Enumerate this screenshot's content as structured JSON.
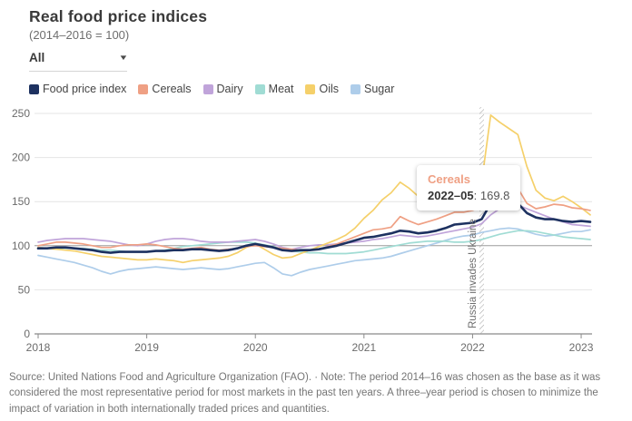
{
  "header": {
    "title": "Real food price indices",
    "subtitle": "(2014–2016 = 100)"
  },
  "controls": {
    "dropdown_value": "All",
    "dropdown_icon": "chevron-down"
  },
  "tooltip": {
    "series": "Cereals",
    "date": "2022–05",
    "separator": ": ",
    "value": "169.8"
  },
  "footer": {
    "source": "Source: United Nations Food and Agriculture Organization (FAO). · Note: The period 2014–16 was chosen as the base as it was considered the most representative period for most markets in the past ten years. A three–year period is chosen to minimize the impact of variation in both internationally traded prices and quantities."
  },
  "colors": {
    "food_price_index": "#1d3160",
    "cereals": "#efa084",
    "dairy": "#c0a4da",
    "meat": "#a0dcd4",
    "oils": "#f5d06a",
    "sugar": "#aecdea",
    "gridline": "#e4e4e4",
    "reference_line_100": "#9c9c9c",
    "axis": "#8a8a8a",
    "axis_label": "#6b6b6b",
    "annotation_text": "#6e6e6e"
  },
  "chart_data": {
    "type": "line",
    "title": "Real food price indices",
    "subtitle": "(2014–2016 = 100)",
    "xlabel": "",
    "ylabel": "",
    "ylim": [
      0,
      250
    ],
    "yticks": [
      0,
      50,
      100,
      150,
      200,
      250
    ],
    "xticks": [
      "2018",
      "2019",
      "2020",
      "2021",
      "2022",
      "2023"
    ],
    "grid": "horizontal",
    "reference_line": 100,
    "legend_position": "top",
    "annotation": {
      "label": "Russia invades Ukraine",
      "x": "2022-02"
    },
    "x": [
      "2018-01",
      "2018-02",
      "2018-03",
      "2018-04",
      "2018-05",
      "2018-06",
      "2018-07",
      "2018-08",
      "2018-09",
      "2018-10",
      "2018-11",
      "2018-12",
      "2019-01",
      "2019-02",
      "2019-03",
      "2019-04",
      "2019-05",
      "2019-06",
      "2019-07",
      "2019-08",
      "2019-09",
      "2019-10",
      "2019-11",
      "2019-12",
      "2020-01",
      "2020-02",
      "2020-03",
      "2020-04",
      "2020-05",
      "2020-06",
      "2020-07",
      "2020-08",
      "2020-09",
      "2020-10",
      "2020-11",
      "2020-12",
      "2021-01",
      "2021-02",
      "2021-03",
      "2021-04",
      "2021-05",
      "2021-06",
      "2021-07",
      "2021-08",
      "2021-09",
      "2021-10",
      "2021-11",
      "2021-12",
      "2022-01",
      "2022-02",
      "2022-03",
      "2022-04",
      "2022-05",
      "2022-06",
      "2022-07",
      "2022-08",
      "2022-09",
      "2022-10",
      "2022-11",
      "2022-12",
      "2023-01",
      "2023-02"
    ],
    "series": [
      {
        "name": "Sugar",
        "color": "#aecdea",
        "width": 1.7,
        "values": [
          89,
          87,
          85,
          83,
          81,
          78,
          75,
          71,
          68,
          71,
          73,
          74,
          75,
          76,
          75,
          74,
          73,
          74,
          75,
          74,
          73,
          74,
          76,
          78,
          80,
          81,
          75,
          68,
          66,
          70,
          73,
          75,
          77,
          79,
          81,
          83,
          84,
          85,
          86,
          88,
          91,
          94,
          97,
          100,
          103,
          106,
          109,
          111,
          112,
          115,
          117,
          119,
          120,
          119,
          116,
          113,
          111,
          112,
          114,
          116,
          116,
          118
        ]
      },
      {
        "name": "Meat",
        "color": "#a0dcd4",
        "width": 1.7,
        "values": [
          98,
          97,
          97,
          97,
          97,
          97,
          96,
          95,
          95,
          94,
          93,
          93,
          93,
          94,
          95,
          97,
          99,
          100,
          101,
          102,
          103,
          104,
          104,
          104,
          103,
          101,
          99,
          96,
          94,
          93,
          92,
          92,
          91,
          91,
          91,
          92,
          93,
          95,
          97,
          99,
          101,
          103,
          104,
          105,
          105,
          105,
          104,
          104,
          105,
          107,
          110,
          113,
          115,
          117,
          117,
          116,
          114,
          112,
          110,
          109,
          108,
          107
        ]
      },
      {
        "name": "Dairy",
        "color": "#c0a4da",
        "width": 1.7,
        "values": [
          104,
          106,
          107,
          108,
          108,
          108,
          107,
          106,
          105,
          103,
          101,
          100,
          102,
          105,
          107,
          108,
          108,
          107,
          105,
          104,
          104,
          104,
          105,
          106,
          107,
          105,
          102,
          98,
          96,
          98,
          100,
          101,
          101,
          102,
          103,
          104,
          105,
          107,
          108,
          110,
          112,
          111,
          110,
          111,
          113,
          115,
          117,
          119,
          121,
          125,
          135,
          142,
          145,
          146,
          142,
          138,
          134,
          130,
          127,
          124,
          123,
          122
        ]
      },
      {
        "name": "Oils",
        "color": "#f5d06a",
        "width": 1.7,
        "values": [
          98,
          97,
          96,
          95,
          94,
          92,
          90,
          88,
          87,
          86,
          85,
          84,
          84,
          85,
          84,
          83,
          81,
          83,
          84,
          85,
          86,
          88,
          92,
          98,
          102,
          96,
          90,
          86,
          87,
          91,
          95,
          99,
          103,
          107,
          112,
          120,
          131,
          140,
          152,
          160,
          172,
          165,
          156,
          158,
          157,
          162,
          168,
          165,
          163,
          172,
          248,
          240,
          233,
          226,
          190,
          163,
          154,
          151,
          156,
          150,
          143,
          135
        ]
      },
      {
        "name": "Cereals",
        "color": "#efa084",
        "width": 1.7,
        "values": [
          100,
          102,
          104,
          104,
          103,
          102,
          100,
          98,
          98,
          100,
          101,
          101,
          102,
          101,
          99,
          97,
          96,
          97,
          98,
          96,
          95,
          96,
          97,
          99,
          100,
          99,
          98,
          97,
          96,
          95,
          95,
          96,
          99,
          102,
          106,
          110,
          114,
          118,
          119,
          121,
          133,
          128,
          124,
          127,
          130,
          134,
          138,
          138,
          140,
          144,
          158,
          164,
          169.8,
          165,
          148,
          142,
          144,
          147,
          146,
          143,
          142,
          140
        ]
      },
      {
        "name": "Food price index",
        "color": "#1d3160",
        "width": 2.6,
        "values": [
          97,
          97,
          98,
          98,
          97,
          96,
          95,
          93,
          92,
          93,
          93,
          93,
          93,
          94,
          94,
          95,
          95,
          96,
          96,
          95,
          94,
          95,
          97,
          100,
          102,
          100,
          98,
          95,
          94,
          95,
          95,
          96,
          98,
          100,
          103,
          106,
          109,
          110,
          112,
          114,
          117,
          116,
          114,
          115,
          117,
          120,
          124,
          125,
          126,
          130,
          148,
          153,
          151,
          148,
          137,
          132,
          130,
          130,
          128,
          127,
          128,
          127
        ]
      }
    ],
    "legend_order": [
      "Food price index",
      "Cereals",
      "Dairy",
      "Meat",
      "Oils",
      "Sugar"
    ]
  }
}
